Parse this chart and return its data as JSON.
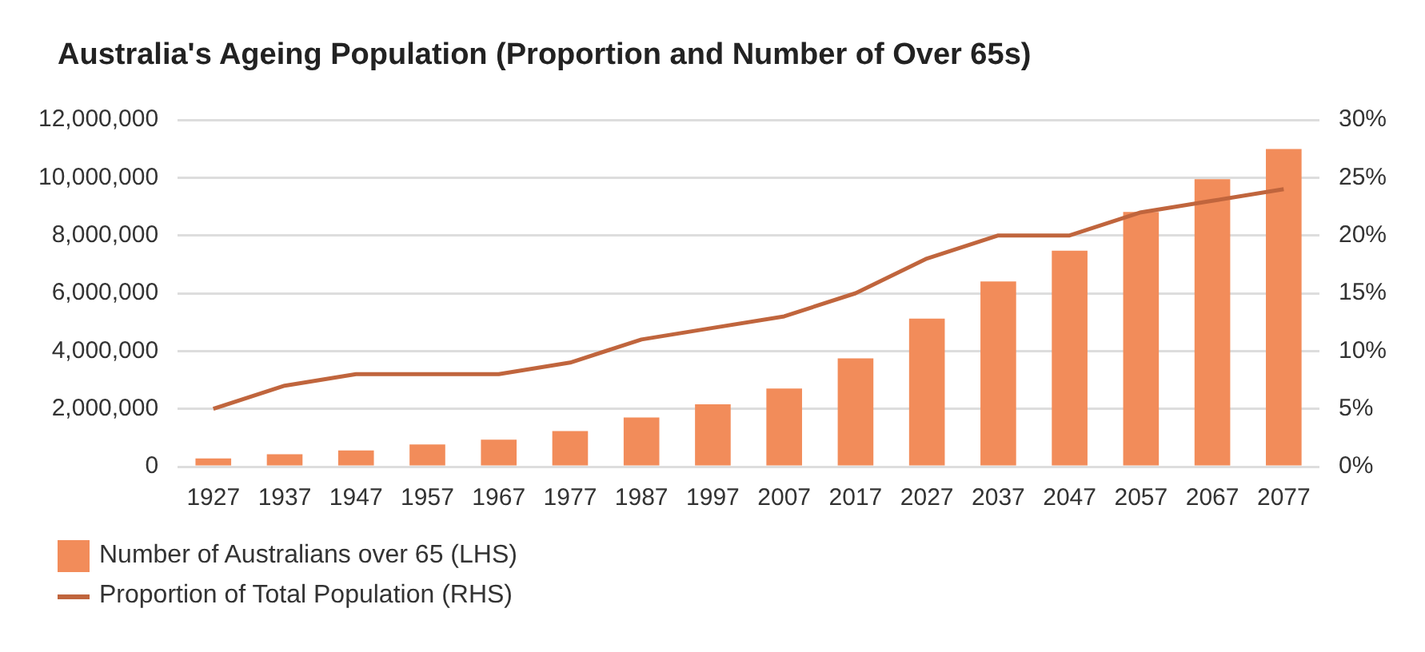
{
  "chart_data": {
    "type": "bar",
    "title": "Australia's Ageing Population (Proportion and Number of Over 65s)",
    "categories": [
      "1927",
      "1937",
      "1947",
      "1957",
      "1967",
      "1977",
      "1987",
      "1997",
      "2007",
      "2017",
      "2027",
      "2037",
      "2047",
      "2057",
      "2067",
      "2077"
    ],
    "series": [
      {
        "name": "Number of Australians over 65 (LHS)",
        "color": "#f28c5a",
        "values": [
          280000,
          430000,
          560000,
          770000,
          930000,
          1230000,
          1700000,
          2160000,
          2700000,
          3750000,
          5120000,
          6410000,
          7470000,
          8810000,
          9950000,
          10990000
        ]
      },
      {
        "name": "Proportion of Total Population (RHS)",
        "type": "line",
        "axis": "y2",
        "color": "#c0653d",
        "values": [
          5,
          7,
          8,
          8,
          8,
          9,
          11,
          12,
          13,
          15,
          18,
          20,
          20,
          22,
          23,
          24
        ]
      }
    ],
    "ylim": [
      0,
      12000000
    ],
    "yticks": [
      {
        "value": 0,
        "label": "0"
      },
      {
        "value": 2000000,
        "label": "2,000,000"
      },
      {
        "value": 4000000,
        "label": "4,000,000"
      },
      {
        "value": 6000000,
        "label": "6,000,000"
      },
      {
        "value": 8000000,
        "label": "8,000,000"
      },
      {
        "value": 10000000,
        "label": "10,000,000"
      },
      {
        "value": 12000000,
        "label": "12,000,000"
      }
    ],
    "y2lim": [
      0,
      30
    ],
    "y2ticks": [
      {
        "value": 0,
        "label": "0%"
      },
      {
        "value": 5,
        "label": "5%"
      },
      {
        "value": 10,
        "label": "10%"
      },
      {
        "value": 15,
        "label": "15%"
      },
      {
        "value": 20,
        "label": "20%"
      },
      {
        "value": 25,
        "label": "25%"
      },
      {
        "value": 30,
        "label": "30%"
      }
    ],
    "grid": "y",
    "legend": "bottom left",
    "marker": "none",
    "line_style": "solid"
  }
}
